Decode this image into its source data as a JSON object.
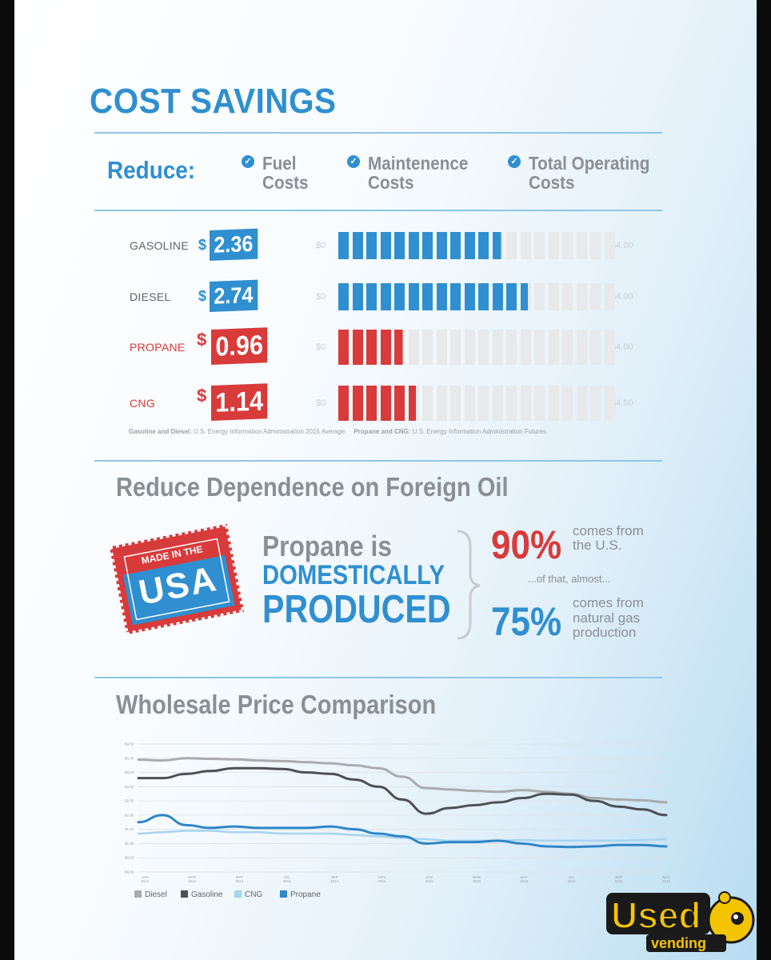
{
  "header": {
    "title": "COST SAVINGS"
  },
  "reduce": {
    "label": "Reduce:",
    "items": [
      {
        "line1": "Fuel",
        "line2": "Costs"
      },
      {
        "line1": "Maintenence",
        "line2": "Costs"
      },
      {
        "line1": "Total Operating",
        "line2": "Costs"
      }
    ]
  },
  "fuel_bars": {
    "axis_min_label": "$0",
    "axis_max_label": "$4.00",
    "currency": "$",
    "colors": {
      "blue": "#2f8fd0",
      "red": "#d93a3a",
      "empty": "#e7e9eb"
    },
    "rows": [
      {
        "name": "GASOLINE",
        "price": "2.36",
        "value": 2.36,
        "color": "blue"
      },
      {
        "name": "DIESEL",
        "price": "2.74",
        "value": 2.74,
        "color": "blue"
      },
      {
        "name": "PROPANE",
        "price": "0.96",
        "value": 0.96,
        "color": "red"
      },
      {
        "name": "CNG",
        "price": "1.14",
        "value": 1.14,
        "color": "red"
      }
    ],
    "note_bold_1": "Gasoline and Diesel:",
    "note_1": "U.S. Energy Information Administration 2015 Average.",
    "note_bold_2": "Propane and CNG:",
    "note_2": "U.S. Energy Information Administration Futures."
  },
  "domestic": {
    "section_title": "Reduce Dependence on Foreign Oil",
    "stamp_small": "MADE IN THE",
    "stamp_big": "USA",
    "line1": "Propane is",
    "line2": "DOMESTICALLY",
    "line3": "PRODUCED",
    "stat1_value": "90%",
    "stat1_line1": "comes from",
    "stat1_line2": "the U.S.",
    "connector": "...of that, almost...",
    "stat2_value": "75%",
    "stat2_line1": "comes from",
    "stat2_line2": "natural gas",
    "stat2_line3": "production"
  },
  "wholesale": {
    "section_title": "Wholesale Price Comparison"
  },
  "chart_data": [
    {
      "type": "bar",
      "categories": [
        "GASOLINE",
        "DIESEL",
        "PROPANE",
        "CNG"
      ],
      "values": [
        2.36,
        2.74,
        0.96,
        1.14
      ],
      "ylim": [
        0,
        4.0
      ]
    },
    {
      "type": "line",
      "ylim": [
        0,
        4.5
      ],
      "yticks": [
        "$4.50",
        "$4.00",
        "$3.50",
        "$3.00",
        "$2.50",
        "$2.00",
        "$1.50",
        "$1.00",
        "$0.50",
        "$0.00"
      ],
      "xticks": [
        {
          "l1": "JAN",
          "l2": "2014"
        },
        {
          "l1": "MAR",
          "l2": "2014"
        },
        {
          "l1": "MAY",
          "l2": "2014"
        },
        {
          "l1": "JUL",
          "l2": "2014"
        },
        {
          "l1": "SEP",
          "l2": "2014"
        },
        {
          "l1": "NOV",
          "l2": "2014"
        },
        {
          "l1": "JAN",
          "l2": "2015"
        },
        {
          "l1": "MAR",
          "l2": "2015"
        },
        {
          "l1": "MAY",
          "l2": "2015"
        },
        {
          "l1": "JUL",
          "l2": "2015"
        },
        {
          "l1": "SEP",
          "l2": "2015"
        },
        {
          "l1": "NOV",
          "l2": "2015"
        }
      ],
      "x": [
        "2014-01",
        "2014-02",
        "2014-03",
        "2014-04",
        "2014-05",
        "2014-06",
        "2014-07",
        "2014-08",
        "2014-09",
        "2014-10",
        "2014-11",
        "2014-12",
        "2015-01",
        "2015-02",
        "2015-03",
        "2015-04",
        "2015-05",
        "2015-06",
        "2015-07",
        "2015-08",
        "2015-09",
        "2015-10",
        "2015-11"
      ],
      "series": [
        {
          "name": "Diesel",
          "color": "#a9abae",
          "width": 3,
          "values": [
            3.95,
            3.92,
            4.0,
            3.98,
            3.96,
            3.92,
            3.9,
            3.86,
            3.82,
            3.75,
            3.65,
            3.35,
            2.95,
            2.9,
            2.85,
            2.82,
            2.88,
            2.82,
            2.75,
            2.6,
            2.55,
            2.52,
            2.45
          ]
        },
        {
          "name": "Gasoline",
          "color": "#4d5055",
          "width": 3,
          "values": [
            3.3,
            3.3,
            3.45,
            3.55,
            3.65,
            3.65,
            3.62,
            3.5,
            3.45,
            3.25,
            3.0,
            2.55,
            2.05,
            2.25,
            2.35,
            2.45,
            2.6,
            2.75,
            2.72,
            2.5,
            2.3,
            2.2,
            2.0
          ]
        },
        {
          "name": "CNG",
          "color": "#a7d4ef",
          "width": 2.5,
          "values": [
            1.35,
            1.4,
            1.45,
            1.45,
            1.4,
            1.4,
            1.35,
            1.35,
            1.35,
            1.3,
            1.25,
            1.2,
            1.15,
            1.1,
            1.1,
            1.1,
            1.12,
            1.1,
            1.1,
            1.1,
            1.1,
            1.12,
            1.15
          ]
        },
        {
          "name": "Propane",
          "color": "#2f86c8",
          "width": 3,
          "values": [
            1.75,
            2.0,
            1.65,
            1.55,
            1.6,
            1.55,
            1.55,
            1.55,
            1.6,
            1.5,
            1.35,
            1.25,
            1.0,
            1.05,
            1.05,
            1.1,
            1.0,
            0.9,
            0.88,
            0.9,
            0.95,
            0.95,
            0.9
          ]
        }
      ]
    }
  ]
}
